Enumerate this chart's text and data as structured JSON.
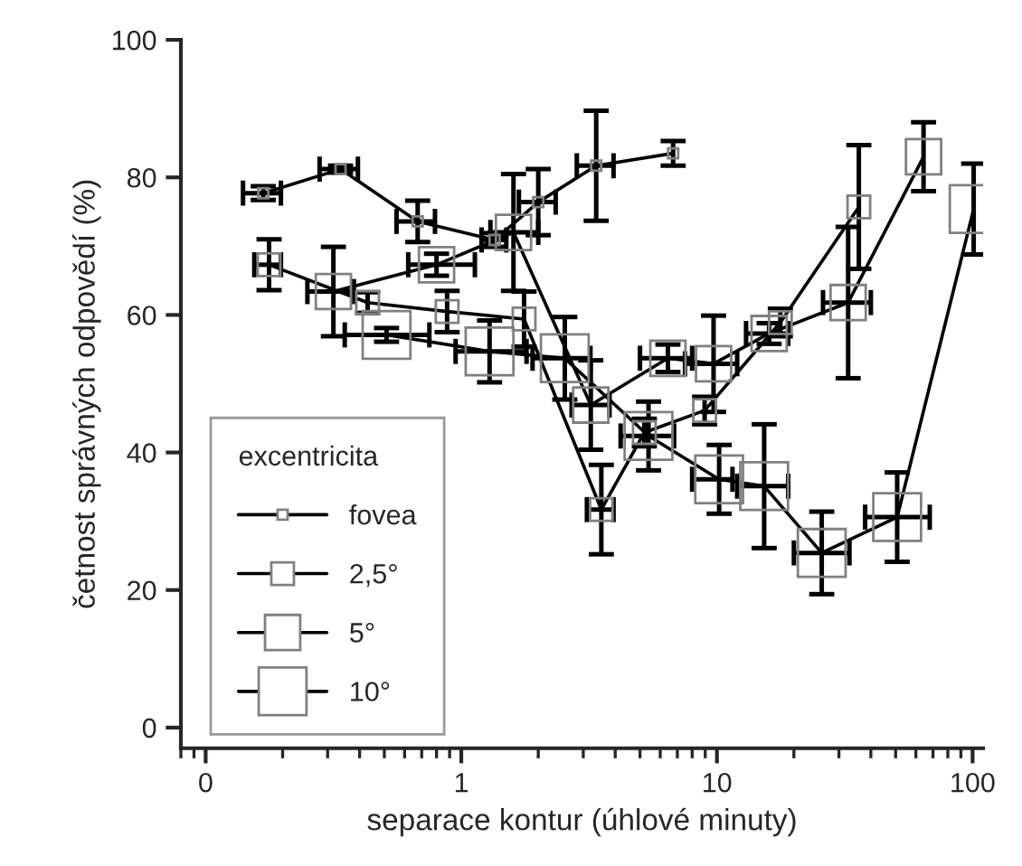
{
  "chart_data": {
    "type": "line",
    "xlabel": "separace kontur (úhlové minuty)",
    "ylabel": "četnost správných odpovědí (%)",
    "legend_title": "excentricita",
    "legend": "bottom left",
    "marker": "square",
    "log": "x",
    "grid": false,
    "xlim": [
      0.08,
      110
    ],
    "xticks": [
      {
        "value": 0.1,
        "label": "0"
      },
      1,
      10,
      100
    ],
    "ylim": [
      -3,
      100
    ],
    "yticks": [
      0,
      20,
      40,
      60,
      80,
      100
    ],
    "series": [
      {
        "name": "fovea",
        "color": "#000000",
        "x": [
          0.168,
          0.337,
          0.675,
          1.35,
          2.0,
          3.37,
          6.74
        ],
        "values": [
          77.7,
          81.2,
          73.6,
          70.9,
          76.4,
          81.7,
          83.5
        ],
        "errors": [
          1,
          0.5,
          3,
          1,
          4.8,
          8,
          1.8
        ],
        "xerrors": [
          [
            0.14,
            0.197
          ],
          [
            0.279,
            0.394
          ],
          [
            0.558,
            0.789
          ],
          [
            1.2,
            1.5
          ],
          [
            1.68,
            2.34
          ],
          [
            2.83,
            3.94
          ],
          null
        ]
      },
      {
        "name": "2,5°",
        "color": "#000000",
        "x": [
          0.177,
          0.43,
          0.88,
          1.76,
          3.53,
          5.2,
          8.95,
          17.7,
          35.9
        ],
        "values": [
          67.3,
          61.8,
          60.5,
          59.4,
          31.7,
          42.9,
          46.1,
          58.9,
          75.7
        ],
        "errors": [
          3.7,
          1.5,
          3,
          4,
          6.5,
          2,
          2,
          2,
          9
        ],
        "xerrors": [
          [
            0.155,
            0.197
          ],
          null,
          null,
          null,
          [
            3.1,
            3.94
          ],
          null,
          null,
          null,
          null
        ]
      },
      {
        "name": "5°",
        "color": "#000000",
        "x": [
          0.316,
          0.8,
          1.6,
          3.21,
          6.43,
          9.7,
          16.0,
          32.6,
          64.3
        ],
        "values": [
          63.4,
          67.3,
          72,
          46.9,
          53.7,
          52.9,
          57.3,
          61.8,
          83
        ],
        "errors": [
          6.5,
          1.6,
          8.5,
          6.5,
          2,
          7,
          1.5,
          11,
          5
        ],
        "xerrors": [
          [
            0.25,
            0.38
          ],
          [
            0.62,
            1.13
          ],
          [
            1.3,
            2.0
          ],
          [
            2.7,
            3.8
          ],
          [
            5.0,
            8.0
          ],
          [
            7.5,
            12
          ],
          [
            13,
            19
          ],
          [
            26,
            40
          ],
          null
        ]
      },
      {
        "name": "10°",
        "color": "#000000",
        "x": [
          0.51,
          1.29,
          2.54,
          5.4,
          10.2,
          15.3,
          25.7,
          50.7,
          101
        ],
        "values": [
          57.1,
          54.7,
          53.7,
          42.4,
          36.1,
          35.1,
          25.4,
          30.6,
          75.4
        ],
        "errors": [
          1,
          4.5,
          6,
          5,
          5,
          9,
          6,
          6.5,
          6.6
        ],
        "xerrors": [
          [
            0.35,
            0.75
          ],
          [
            0.95,
            1.8
          ],
          [
            1.9,
            3.2
          ],
          [
            4.2,
            6.8
          ],
          [
            8,
            11.5
          ],
          [
            12,
            19
          ],
          [
            20,
            33
          ],
          [
            38,
            68
          ],
          null
        ]
      }
    ]
  }
}
